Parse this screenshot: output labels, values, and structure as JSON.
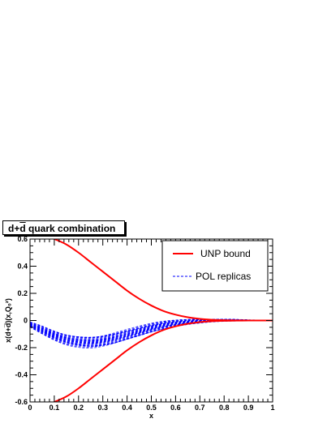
{
  "title": {
    "prefix": "d+",
    "dbar": "d",
    "suffix": " quark combination"
  },
  "chart_data": {
    "type": "line",
    "xlabel": "x",
    "ylabel": "x(d+d̅)(x,Q₀²)",
    "xlim": [
      0,
      1
    ],
    "ylim": [
      -0.6,
      0.6
    ],
    "x_ticks": [
      0,
      0.1,
      0.2,
      0.3,
      0.4,
      0.5,
      0.6,
      0.7,
      0.8,
      0.9,
      1
    ],
    "x_tick_labels": [
      "0",
      "0.1",
      "0.2",
      "0.3",
      "0.4",
      "0.5",
      "0.6",
      "0.7",
      "0.8",
      "0.9",
      "1"
    ],
    "y_ticks": [
      -0.6,
      -0.4,
      -0.2,
      0,
      0.2,
      0.4,
      0.6
    ],
    "y_tick_labels": [
      "-0.6",
      "-0.4",
      "-0.2",
      "0",
      "0.2",
      "0.4",
      "0.6"
    ],
    "legend_position": "top-right",
    "x": [
      0.0,
      0.05,
      0.1,
      0.15,
      0.2,
      0.25,
      0.3,
      0.35,
      0.4,
      0.45,
      0.5,
      0.55,
      0.6,
      0.65,
      0.7,
      0.75,
      0.8,
      0.85,
      0.9,
      0.95,
      1.0
    ],
    "series": [
      {
        "name": "UNP bound",
        "color": "#ff0000",
        "style": "solid",
        "upper": [
          0.67,
          0.63,
          0.6,
          0.56,
          0.5,
          0.43,
          0.36,
          0.29,
          0.22,
          0.16,
          0.11,
          0.07,
          0.043,
          0.024,
          0.012,
          0.005,
          0.002,
          0.001,
          0.0,
          0.0,
          0.0
        ],
        "lower": [
          -0.67,
          -0.63,
          -0.6,
          -0.56,
          -0.5,
          -0.43,
          -0.36,
          -0.29,
          -0.22,
          -0.16,
          -0.11,
          -0.07,
          -0.043,
          -0.024,
          -0.012,
          -0.005,
          -0.002,
          -0.001,
          0.0,
          0.0,
          0.0
        ]
      },
      {
        "name": "POL replicas",
        "color": "#0000ff",
        "style": "dashed",
        "central": [
          -0.03,
          -0.07,
          -0.11,
          -0.14,
          -0.155,
          -0.16,
          -0.15,
          -0.13,
          -0.105,
          -0.08,
          -0.055,
          -0.035,
          -0.02,
          -0.01,
          -0.004,
          0.0,
          0.002,
          0.002,
          0.001,
          0.0,
          0.0
        ],
        "band_halfwidth": [
          0.02,
          0.03,
          0.035,
          0.04,
          0.045,
          0.05,
          0.05,
          0.05,
          0.045,
          0.04,
          0.035,
          0.03,
          0.025,
          0.02,
          0.016,
          0.012,
          0.01,
          0.008,
          0.005,
          0.003,
          0.0
        ]
      }
    ]
  }
}
